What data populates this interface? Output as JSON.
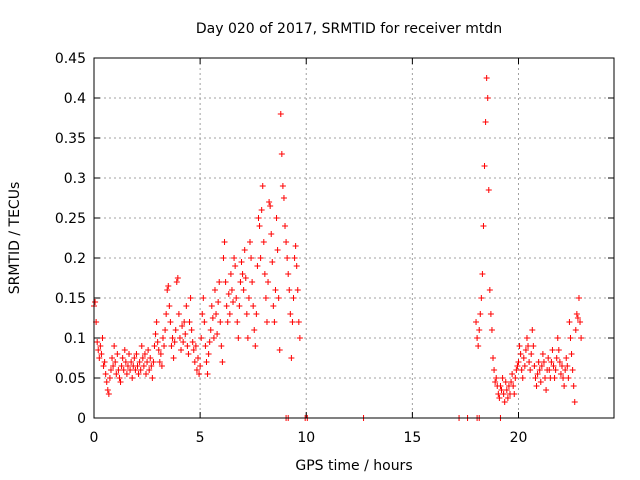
{
  "chart_data": {
    "type": "scatter",
    "title": "Day 020 of 2017, SRMTID for receiver mtdn",
    "xlabel": "GPS time / hours",
    "ylabel": "SRMTID / TECUs",
    "xlim": [
      0,
      24.5
    ],
    "ylim": [
      0,
      0.45
    ],
    "x_ticks": [
      0,
      5,
      10,
      15,
      20
    ],
    "x_tick_labels": [
      "0",
      "5",
      "10",
      "15",
      "20"
    ],
    "y_ticks": [
      0,
      0.05,
      0.1,
      0.15,
      0.2,
      0.25,
      0.3,
      0.35,
      0.4,
      0.45
    ],
    "y_tick_labels": [
      "0",
      "0.05",
      "0.1",
      "0.15",
      "0.2",
      "0.25",
      "0.3",
      "0.35",
      "0.4",
      "0.45"
    ],
    "grid": true,
    "marker": "+",
    "color": "#ff0000",
    "series": [
      {
        "name": "SRMTID",
        "points": [
          [
            0.0,
            0.14
          ],
          [
            0.05,
            0.145
          ],
          [
            0.1,
            0.12
          ],
          [
            0.15,
            0.095
          ],
          [
            0.2,
            0.085
          ],
          [
            0.25,
            0.075
          ],
          [
            0.3,
            0.09
          ],
          [
            0.35,
            0.08
          ],
          [
            0.4,
            0.1
          ],
          [
            0.45,
            0.065
          ],
          [
            0.5,
            0.07
          ],
          [
            0.55,
            0.055
          ],
          [
            0.6,
            0.045
          ],
          [
            0.65,
            0.035
          ],
          [
            0.7,
            0.03
          ],
          [
            0.75,
            0.05
          ],
          [
            0.8,
            0.06
          ],
          [
            0.85,
            0.075
          ],
          [
            0.9,
            0.065
          ],
          [
            0.95,
            0.09
          ],
          [
            1.0,
            0.07
          ],
          [
            1.05,
            0.055
          ],
          [
            1.1,
            0.08
          ],
          [
            1.15,
            0.06
          ],
          [
            1.2,
            0.05
          ],
          [
            1.25,
            0.045
          ],
          [
            1.3,
            0.065
          ],
          [
            1.35,
            0.075
          ],
          [
            1.4,
            0.06
          ],
          [
            1.45,
            0.085
          ],
          [
            1.5,
            0.07
          ],
          [
            1.55,
            0.055
          ],
          [
            1.6,
            0.065
          ],
          [
            1.65,
            0.08
          ],
          [
            1.7,
            0.06
          ],
          [
            1.75,
            0.07
          ],
          [
            1.8,
            0.05
          ],
          [
            1.85,
            0.065
          ],
          [
            1.9,
            0.075
          ],
          [
            1.95,
            0.06
          ],
          [
            2.0,
            0.08
          ],
          [
            2.05,
            0.065
          ],
          [
            2.1,
            0.055
          ],
          [
            2.15,
            0.07
          ],
          [
            2.2,
            0.06
          ],
          [
            2.25,
            0.09
          ],
          [
            2.3,
            0.075
          ],
          [
            2.35,
            0.065
          ],
          [
            2.4,
            0.08
          ],
          [
            2.45,
            0.055
          ],
          [
            2.5,
            0.07
          ],
          [
            2.55,
            0.085
          ],
          [
            2.6,
            0.06
          ],
          [
            2.65,
            0.075
          ],
          [
            2.7,
            0.065
          ],
          [
            2.75,
            0.05
          ],
          [
            2.8,
            0.07
          ],
          [
            2.85,
            0.09
          ],
          [
            2.9,
            0.105
          ],
          [
            2.95,
            0.12
          ],
          [
            3.0,
            0.095
          ],
          [
            3.05,
            0.085
          ],
          [
            3.1,
            0.07
          ],
          [
            3.15,
            0.08
          ],
          [
            3.2,
            0.065
          ],
          [
            3.25,
            0.1
          ],
          [
            3.3,
            0.09
          ],
          [
            3.35,
            0.11
          ],
          [
            3.4,
            0.13
          ],
          [
            3.45,
            0.16
          ],
          [
            3.5,
            0.165
          ],
          [
            3.55,
            0.14
          ],
          [
            3.6,
            0.12
          ],
          [
            3.65,
            0.09
          ],
          [
            3.7,
            0.1
          ],
          [
            3.75,
            0.075
          ],
          [
            3.8,
            0.095
          ],
          [
            3.85,
            0.11
          ],
          [
            3.9,
            0.17
          ],
          [
            3.95,
            0.175
          ],
          [
            4.0,
            0.13
          ],
          [
            4.05,
            0.1
          ],
          [
            4.1,
            0.085
          ],
          [
            4.15,
            0.115
          ],
          [
            4.2,
            0.095
          ],
          [
            4.25,
            0.12
          ],
          [
            4.3,
            0.105
          ],
          [
            4.35,
            0.14
          ],
          [
            4.4,
            0.09
          ],
          [
            4.45,
            0.08
          ],
          [
            4.5,
            0.12
          ],
          [
            4.55,
            0.15
          ],
          [
            4.6,
            0.11
          ],
          [
            4.65,
            0.095
          ],
          [
            4.7,
            0.085
          ],
          [
            4.75,
            0.07
          ],
          [
            4.8,
            0.09
          ],
          [
            4.85,
            0.06
          ],
          [
            4.9,
            0.075
          ],
          [
            4.95,
            0.055
          ],
          [
            5.0,
            0.065
          ],
          [
            5.05,
            0.1
          ],
          [
            5.1,
            0.13
          ],
          [
            5.15,
            0.15
          ],
          [
            5.2,
            0.12
          ],
          [
            5.25,
            0.09
          ],
          [
            5.3,
            0.07
          ],
          [
            5.35,
            0.055
          ],
          [
            5.4,
            0.08
          ],
          [
            5.45,
            0.095
          ],
          [
            5.5,
            0.11
          ],
          [
            5.55,
            0.14
          ],
          [
            5.6,
            0.125
          ],
          [
            5.65,
            0.1
          ],
          [
            5.7,
            0.16
          ],
          [
            5.75,
            0.13
          ],
          [
            5.8,
            0.105
          ],
          [
            5.85,
            0.145
          ],
          [
            5.9,
            0.17
          ],
          [
            5.95,
            0.12
          ],
          [
            6.0,
            0.09
          ],
          [
            6.05,
            0.07
          ],
          [
            6.1,
            0.2
          ],
          [
            6.15,
            0.22
          ],
          [
            6.2,
            0.17
          ],
          [
            6.25,
            0.14
          ],
          [
            6.3,
            0.12
          ],
          [
            6.35,
            0.155
          ],
          [
            6.4,
            0.13
          ],
          [
            6.45,
            0.18
          ],
          [
            6.5,
            0.16
          ],
          [
            6.55,
            0.145
          ],
          [
            6.6,
            0.2
          ],
          [
            6.65,
            0.19
          ],
          [
            6.7,
            0.15
          ],
          [
            6.75,
            0.12
          ],
          [
            6.8,
            0.1
          ],
          [
            6.85,
            0.14
          ],
          [
            6.9,
            0.17
          ],
          [
            6.95,
            0.195
          ],
          [
            7.0,
            0.18
          ],
          [
            7.05,
            0.16
          ],
          [
            7.1,
            0.21
          ],
          [
            7.15,
            0.175
          ],
          [
            7.2,
            0.13
          ],
          [
            7.25,
            0.1
          ],
          [
            7.3,
            0.15
          ],
          [
            7.35,
            0.22
          ],
          [
            7.4,
            0.2
          ],
          [
            7.45,
            0.17
          ],
          [
            7.5,
            0.14
          ],
          [
            7.55,
            0.11
          ],
          [
            7.6,
            0.09
          ],
          [
            7.65,
            0.13
          ],
          [
            7.7,
            0.19
          ],
          [
            7.75,
            0.25
          ],
          [
            7.8,
            0.24
          ],
          [
            7.85,
            0.2
          ],
          [
            7.9,
            0.26
          ],
          [
            7.95,
            0.29
          ],
          [
            8.0,
            0.22
          ],
          [
            8.05,
            0.18
          ],
          [
            8.1,
            0.15
          ],
          [
            8.15,
            0.12
          ],
          [
            8.2,
            0.17
          ],
          [
            8.25,
            0.27
          ],
          [
            8.3,
            0.265
          ],
          [
            8.35,
            0.23
          ],
          [
            8.4,
            0.195
          ],
          [
            8.45,
            0.14
          ],
          [
            8.5,
            0.12
          ],
          [
            8.55,
            0.16
          ],
          [
            8.6,
            0.25
          ],
          [
            8.65,
            0.21
          ],
          [
            8.7,
            0.15
          ],
          [
            8.75,
            0.085
          ],
          [
            8.8,
            0.38
          ],
          [
            8.85,
            0.33
          ],
          [
            8.9,
            0.29
          ],
          [
            8.95,
            0.275
          ],
          [
            9.0,
            0.24
          ],
          [
            9.05,
            0.22
          ],
          [
            9.1,
            0.2
          ],
          [
            9.15,
            0.18
          ],
          [
            9.2,
            0.16
          ],
          [
            9.25,
            0.13
          ],
          [
            9.3,
            0.075
          ],
          [
            9.35,
            0.12
          ],
          [
            9.4,
            0.15
          ],
          [
            9.45,
            0.2
          ],
          [
            9.5,
            0.215
          ],
          [
            9.55,
            0.19
          ],
          [
            9.6,
            0.16
          ],
          [
            9.65,
            0.12
          ],
          [
            9.7,
            0.1
          ],
          [
            18.0,
            0.12
          ],
          [
            18.05,
            0.1
          ],
          [
            18.1,
            0.09
          ],
          [
            18.15,
            0.11
          ],
          [
            18.2,
            0.13
          ],
          [
            18.25,
            0.15
          ],
          [
            18.3,
            0.18
          ],
          [
            18.35,
            0.24
          ],
          [
            18.4,
            0.315
          ],
          [
            18.45,
            0.37
          ],
          [
            18.5,
            0.425
          ],
          [
            18.55,
            0.4
          ],
          [
            18.6,
            0.285
          ],
          [
            18.65,
            0.16
          ],
          [
            18.7,
            0.13
          ],
          [
            18.75,
            0.11
          ],
          [
            18.8,
            0.075
          ],
          [
            18.85,
            0.06
          ],
          [
            18.9,
            0.045
          ],
          [
            18.95,
            0.05
          ],
          [
            19.0,
            0.04
          ],
          [
            19.05,
            0.03
          ],
          [
            19.1,
            0.025
          ],
          [
            19.15,
            0.04
          ],
          [
            19.2,
            0.035
          ],
          [
            19.25,
            0.05
          ],
          [
            19.3,
            0.03
          ],
          [
            19.35,
            0.02
          ],
          [
            19.4,
            0.045
          ],
          [
            19.45,
            0.035
          ],
          [
            19.5,
            0.025
          ],
          [
            19.55,
            0.04
          ],
          [
            19.6,
            0.03
          ],
          [
            19.65,
            0.045
          ],
          [
            19.7,
            0.055
          ],
          [
            19.75,
            0.04
          ],
          [
            19.8,
            0.03
          ],
          [
            19.85,
            0.05
          ],
          [
            19.9,
            0.06
          ],
          [
            19.95,
            0.065
          ],
          [
            20.0,
            0.07
          ],
          [
            20.05,
            0.09
          ],
          [
            20.1,
            0.08
          ],
          [
            20.15,
            0.06
          ],
          [
            20.2,
            0.05
          ],
          [
            20.25,
            0.075
          ],
          [
            20.3,
            0.065
          ],
          [
            20.35,
            0.085
          ],
          [
            20.4,
            0.1
          ],
          [
            20.45,
            0.09
          ],
          [
            20.5,
            0.07
          ],
          [
            20.55,
            0.06
          ],
          [
            20.6,
            0.08
          ],
          [
            20.65,
            0.11
          ],
          [
            20.7,
            0.09
          ],
          [
            20.75,
            0.065
          ],
          [
            20.8,
            0.05
          ],
          [
            20.85,
            0.04
          ],
          [
            20.9,
            0.055
          ],
          [
            20.95,
            0.07
          ],
          [
            21.0,
            0.06
          ],
          [
            21.05,
            0.045
          ],
          [
            21.1,
            0.065
          ],
          [
            21.15,
            0.08
          ],
          [
            21.2,
            0.07
          ],
          [
            21.25,
            0.05
          ],
          [
            21.3,
            0.035
          ],
          [
            21.35,
            0.06
          ],
          [
            21.4,
            0.075
          ],
          [
            21.45,
            0.06
          ],
          [
            21.5,
            0.05
          ],
          [
            21.55,
            0.07
          ],
          [
            21.6,
            0.085
          ],
          [
            21.65,
            0.065
          ],
          [
            21.7,
            0.05
          ],
          [
            21.75,
            0.06
          ],
          [
            21.8,
            0.075
          ],
          [
            21.85,
            0.1
          ],
          [
            21.9,
            0.085
          ],
          [
            21.95,
            0.07
          ],
          [
            22.0,
            0.055
          ],
          [
            22.05,
            0.065
          ],
          [
            22.1,
            0.05
          ],
          [
            22.15,
            0.04
          ],
          [
            22.2,
            0.06
          ],
          [
            22.25,
            0.075
          ],
          [
            22.3,
            0.065
          ],
          [
            22.35,
            0.05
          ],
          [
            22.4,
            0.12
          ],
          [
            22.45,
            0.1
          ],
          [
            22.5,
            0.08
          ],
          [
            22.55,
            0.06
          ],
          [
            22.6,
            0.04
          ],
          [
            22.65,
            0.02
          ],
          [
            22.7,
            0.11
          ],
          [
            22.75,
            0.13
          ],
          [
            22.8,
            0.125
          ],
          [
            22.85,
            0.15
          ],
          [
            22.9,
            0.12
          ],
          [
            22.95,
            0.1
          ],
          [
            9.05,
            0.0
          ],
          [
            9.15,
            0.0
          ],
          [
            9.95,
            0.0
          ],
          [
            10.05,
            0.0
          ],
          [
            12.7,
            0.0
          ],
          [
            17.2,
            0.0
          ],
          [
            17.6,
            0.0
          ],
          [
            18.05,
            0.0
          ],
          [
            18.15,
            0.0
          ],
          [
            19.15,
            0.0
          ]
        ]
      }
    ]
  }
}
